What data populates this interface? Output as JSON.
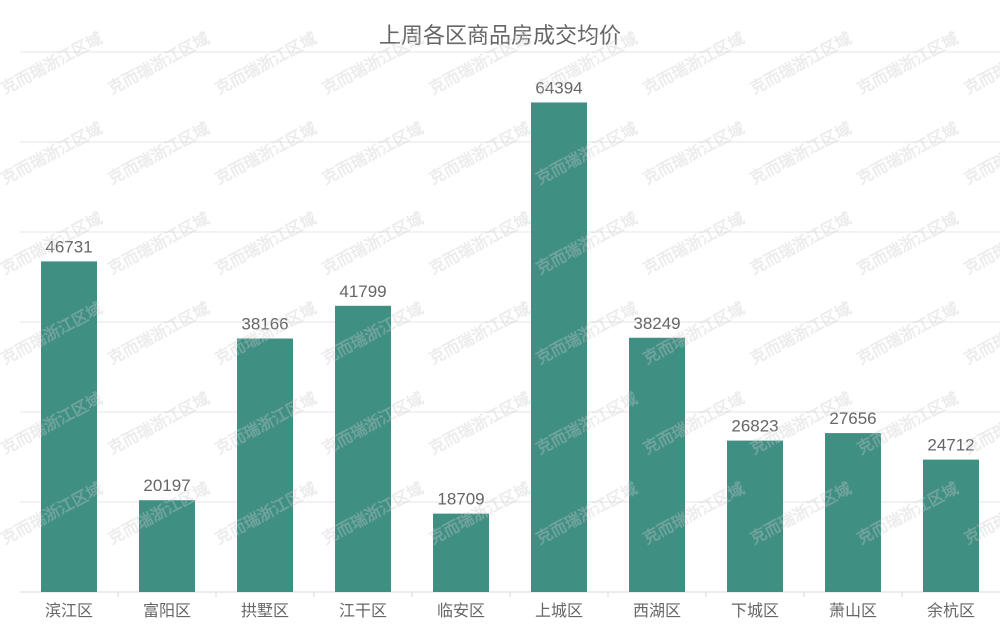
{
  "chart_data": {
    "type": "bar",
    "title": "上周各区商品房成交均价",
    "categories": [
      "滨江区",
      "富阳区",
      "拱墅区",
      "江干区",
      "临安区",
      "上城区",
      "西湖区",
      "下城区",
      "萧山区",
      "余杭区"
    ],
    "values": [
      46731,
      20197,
      38166,
      41799,
      18709,
      64394,
      38249,
      26823,
      27656,
      24712
    ],
    "ylim": [
      10000,
      70000
    ],
    "ytick_step": 10000,
    "grid": true,
    "data_labels": true,
    "bar_color": "#3f8f83",
    "label_color": "#666666",
    "grid_color": "#e6e6e6"
  },
  "watermark": "克而瑞浙江区域"
}
